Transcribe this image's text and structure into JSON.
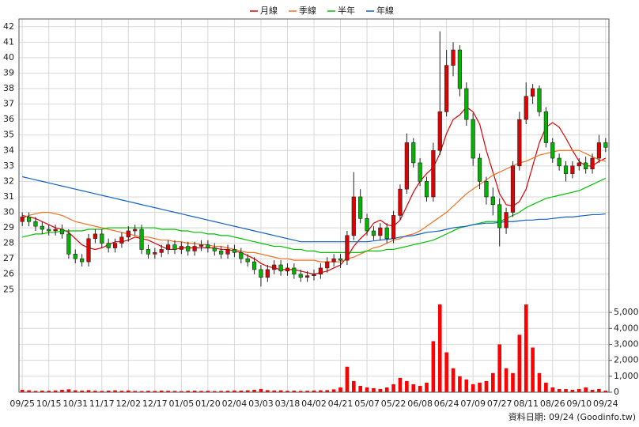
{
  "chart_data": {
    "type": "candlestick",
    "legend": "top",
    "categories": [
      "09/25",
      null,
      null,
      null,
      "10/15",
      null,
      null,
      null,
      "10/31",
      null,
      null,
      null,
      "11/17",
      null,
      null,
      null,
      "12/02",
      null,
      null,
      null,
      "12/17",
      null,
      null,
      null,
      "01/05",
      null,
      null,
      null,
      "01/20",
      null,
      null,
      null,
      "02/04",
      null,
      null,
      null,
      "03/03",
      null,
      null,
      null,
      "03/18",
      null,
      null,
      null,
      "04/02",
      null,
      null,
      null,
      "04/21",
      null,
      null,
      null,
      "05/07",
      null,
      null,
      null,
      "05/22",
      null,
      null,
      null,
      "06/08",
      null,
      null,
      null,
      "06/24",
      null,
      null,
      null,
      "07/09",
      null,
      null,
      null,
      "07/27",
      null,
      null,
      null,
      "08/11",
      null,
      null,
      null,
      "08/26",
      null,
      null,
      null,
      "09/10",
      null,
      null,
      null,
      "09/24"
    ],
    "ohlc": {
      "up_color": "#e00000",
      "down_color": "#00b400",
      "open": [
        29.4,
        29.7,
        29.4,
        29.1,
        28.9,
        28.8,
        28.9,
        28.6,
        27.3,
        27.0,
        26.8,
        28.3,
        28.6,
        28.0,
        27.7,
        28.0,
        28.4,
        28.8,
        28.9,
        27.6,
        27.3,
        27.4,
        27.6,
        27.9,
        27.6,
        27.8,
        27.5,
        27.8,
        27.9,
        27.7,
        27.5,
        27.3,
        27.6,
        27.4,
        27.0,
        26.8,
        26.3,
        25.8,
        26.3,
        26.6,
        26.2,
        26.4,
        26.0,
        25.8,
        25.9,
        26.0,
        26.4,
        26.8,
        27.0,
        26.9,
        28.5,
        31.0,
        29.6,
        28.8,
        28.5,
        29.0,
        28.3,
        29.8,
        31.5,
        34.5,
        33.2,
        32.0,
        31.0,
        34.0,
        36.5,
        39.5,
        40.5,
        38.0,
        36.0,
        33.5,
        32.0,
        31.0,
        30.5,
        29.0,
        30.0,
        33.0,
        36.0,
        37.5,
        38.0,
        36.5,
        34.5,
        33.5,
        33.0,
        32.5,
        33.0,
        33.2,
        32.8,
        33.5,
        34.5
      ],
      "high": [
        30.0,
        30.0,
        29.7,
        29.4,
        29.2,
        29.2,
        29.2,
        28.9,
        27.6,
        27.3,
        28.6,
        28.9,
        28.9,
        28.3,
        28.3,
        28.7,
        29.1,
        29.2,
        29.2,
        27.9,
        27.7,
        27.9,
        28.2,
        28.2,
        28.1,
        28.1,
        28.1,
        28.2,
        28.2,
        28.0,
        27.8,
        27.9,
        27.9,
        27.7,
        27.3,
        27.1,
        26.6,
        26.6,
        26.9,
        26.9,
        26.7,
        26.7,
        26.3,
        26.2,
        26.3,
        26.7,
        27.1,
        27.3,
        27.3,
        28.8,
        32.6,
        31.5,
        29.9,
        29.1,
        29.3,
        29.3,
        30.1,
        31.8,
        35.1,
        34.8,
        33.5,
        32.3,
        34.5,
        41.7,
        40.5,
        41.0,
        40.8,
        38.4,
        36.4,
        33.8,
        32.3,
        31.6,
        30.9,
        30.3,
        33.3,
        36.5,
        38.4,
        38.3,
        38.2,
        36.8,
        34.8,
        33.8,
        33.3,
        33.3,
        33.5,
        33.6,
        33.8,
        35.0,
        34.8
      ],
      "low": [
        29.1,
        29.1,
        28.8,
        28.6,
        28.5,
        28.5,
        28.3,
        27.0,
        26.7,
        26.5,
        26.5,
        28.0,
        27.7,
        27.4,
        27.4,
        27.7,
        28.1,
        28.5,
        27.3,
        27.0,
        27.0,
        27.1,
        27.3,
        27.3,
        27.3,
        27.2,
        27.2,
        27.5,
        27.4,
        27.2,
        27.0,
        27.0,
        27.1,
        26.7,
        26.5,
        26.0,
        25.2,
        25.5,
        26.0,
        25.9,
        25.9,
        25.7,
        25.5,
        25.5,
        25.6,
        25.7,
        26.1,
        26.5,
        26.4,
        26.6,
        28.2,
        29.3,
        28.5,
        28.2,
        28.2,
        28.0,
        28.0,
        29.5,
        31.2,
        32.9,
        31.7,
        30.7,
        30.7,
        33.7,
        36.2,
        38.8,
        37.5,
        35.6,
        33.0,
        31.5,
        30.5,
        29.8,
        27.8,
        28.6,
        29.7,
        32.7,
        35.7,
        37.0,
        36.2,
        34.2,
        33.2,
        32.7,
        32.0,
        32.2,
        32.7,
        32.5,
        32.5,
        33.2,
        33.9
      ],
      "close": [
        29.7,
        29.4,
        29.1,
        28.9,
        28.8,
        28.9,
        28.6,
        27.3,
        27.0,
        26.8,
        28.3,
        28.6,
        28.0,
        27.7,
        28.0,
        28.4,
        28.8,
        28.9,
        27.6,
        27.3,
        27.4,
        27.6,
        27.9,
        27.6,
        27.8,
        27.5,
        27.8,
        27.9,
        27.7,
        27.5,
        27.3,
        27.6,
        27.4,
        27.0,
        26.8,
        26.3,
        25.8,
        26.3,
        26.6,
        26.2,
        26.4,
        26.0,
        25.8,
        25.9,
        26.0,
        26.4,
        26.8,
        27.0,
        26.9,
        28.5,
        31.0,
        29.6,
        28.8,
        28.5,
        29.0,
        28.3,
        29.8,
        31.5,
        34.5,
        33.2,
        32.0,
        31.0,
        34.0,
        36.5,
        39.5,
        40.5,
        38.0,
        36.0,
        33.5,
        32.0,
        31.0,
        30.5,
        29.0,
        30.0,
        33.0,
        36.0,
        37.5,
        38.0,
        36.5,
        34.5,
        33.5,
        33.0,
        32.5,
        33.0,
        33.2,
        32.8,
        33.5,
        34.5,
        34.2
      ]
    },
    "series": [
      {
        "name": "月線",
        "color": "#dd0000",
        "values": [
          29.8,
          29.7,
          29.6,
          29.4,
          29.2,
          29.0,
          28.9,
          28.7,
          28.3,
          27.9,
          27.7,
          27.6,
          27.7,
          27.9,
          28.1,
          28.1,
          28.2,
          28.4,
          28.3,
          28.2,
          28.0,
          27.8,
          27.6,
          27.6,
          27.7,
          27.7,
          27.7,
          27.7,
          27.7,
          27.7,
          27.6,
          27.6,
          27.5,
          27.4,
          27.2,
          27.0,
          26.7,
          26.5,
          26.4,
          26.3,
          26.3,
          26.3,
          26.2,
          26.1,
          26.0,
          26.1,
          26.2,
          26.4,
          26.6,
          27.1,
          27.8,
          28.3,
          28.7,
          29.3,
          29.5,
          29.2,
          29.1,
          29.5,
          30.4,
          31.3,
          32.0,
          32.5,
          32.9,
          33.8,
          35.1,
          36.0,
          36.3,
          36.8,
          36.5,
          35.7,
          34.0,
          32.6,
          31.2,
          30.5,
          30.4,
          30.7,
          31.5,
          33.0,
          34.5,
          35.5,
          35.8,
          35.5,
          34.8,
          34.0,
          33.3,
          33.0,
          33.0,
          33.3,
          33.5
        ]
      },
      {
        "name": "季線",
        "color": "#f07020",
        "values": [
          29.6,
          29.8,
          29.9,
          30.0,
          30.0,
          29.9,
          29.8,
          29.6,
          29.4,
          29.3,
          29.2,
          29.1,
          29.0,
          28.9,
          28.8,
          28.7,
          28.6,
          28.5,
          28.4,
          28.4,
          28.3,
          28.2,
          28.2,
          28.1,
          28.1,
          28.0,
          28.0,
          27.9,
          27.9,
          27.8,
          27.8,
          27.7,
          27.6,
          27.5,
          27.4,
          27.4,
          27.3,
          27.2,
          27.1,
          27.0,
          27.0,
          26.9,
          26.9,
          26.9,
          26.9,
          26.8,
          26.8,
          26.8,
          26.8,
          27.0,
          27.1,
          27.3,
          27.5,
          27.7,
          27.8,
          28.0,
          28.2,
          28.3,
          28.5,
          28.6,
          28.8,
          29.1,
          29.4,
          29.7,
          30.0,
          30.4,
          30.8,
          31.2,
          31.5,
          31.8,
          32.1,
          32.4,
          32.6,
          32.8,
          33.0,
          33.2,
          33.3,
          33.5,
          33.7,
          33.8,
          33.9,
          34.0,
          34.0,
          34.0,
          34.0,
          33.8,
          33.6,
          33.4,
          33.3
        ]
      },
      {
        "name": "半年",
        "color": "#00c000",
        "values": [
          28.4,
          28.5,
          28.6,
          28.6,
          28.7,
          28.7,
          28.8,
          28.8,
          28.8,
          28.8,
          28.9,
          28.9,
          28.9,
          29.0,
          29.0,
          29.0,
          29.0,
          29.0,
          29.0,
          29.0,
          29.0,
          28.9,
          28.9,
          28.9,
          28.8,
          28.8,
          28.7,
          28.7,
          28.6,
          28.6,
          28.5,
          28.5,
          28.4,
          28.3,
          28.2,
          28.1,
          28.0,
          27.9,
          27.8,
          27.8,
          27.7,
          27.6,
          27.6,
          27.5,
          27.5,
          27.4,
          27.4,
          27.4,
          27.4,
          27.4,
          27.4,
          27.4,
          27.5,
          27.5,
          27.5,
          27.6,
          27.6,
          27.7,
          27.8,
          27.9,
          28.0,
          28.1,
          28.2,
          28.4,
          28.6,
          28.8,
          29.0,
          29.1,
          29.2,
          29.3,
          29.4,
          29.4,
          29.4,
          29.6,
          29.8,
          30.0,
          30.3,
          30.5,
          30.7,
          30.9,
          31.0,
          31.1,
          31.2,
          31.3,
          31.4,
          31.6,
          31.8,
          32.0,
          32.2
        ]
      },
      {
        "name": "年線",
        "color": "#1060c0",
        "values": [
          32.3,
          32.2,
          32.1,
          32.0,
          31.9,
          31.8,
          31.7,
          31.6,
          31.5,
          31.4,
          31.3,
          31.2,
          31.1,
          31.0,
          30.9,
          30.8,
          30.7,
          30.6,
          30.5,
          30.4,
          30.3,
          30.2,
          30.1,
          30.0,
          29.9,
          29.8,
          29.7,
          29.6,
          29.5,
          29.4,
          29.3,
          29.2,
          29.1,
          29.0,
          28.9,
          28.8,
          28.7,
          28.6,
          28.5,
          28.4,
          28.3,
          28.2,
          28.1,
          28.1,
          28.1,
          28.1,
          28.1,
          28.1,
          28.1,
          28.1,
          28.1,
          28.1,
          28.1,
          28.15,
          28.2,
          28.25,
          28.3,
          28.4,
          28.45,
          28.5,
          28.6,
          28.7,
          28.75,
          28.8,
          28.9,
          29.0,
          29.05,
          29.1,
          29.2,
          29.25,
          29.3,
          29.3,
          29.35,
          29.4,
          29.4,
          29.45,
          29.5,
          29.5,
          29.55,
          29.55,
          29.6,
          29.65,
          29.7,
          29.7,
          29.75,
          29.8,
          29.85,
          29.85,
          29.9
        ]
      }
    ],
    "volume": {
      "color": "#ff0000",
      "axis": "y2",
      "values": [
        150,
        120,
        80,
        100,
        90,
        110,
        150,
        180,
        120,
        100,
        130,
        90,
        80,
        100,
        120,
        90,
        110,
        80,
        70,
        90,
        80,
        100,
        90,
        80,
        70,
        90,
        100,
        80,
        90,
        70,
        80,
        90,
        110,
        100,
        120,
        150,
        200,
        130,
        110,
        120,
        90,
        100,
        80,
        90,
        110,
        120,
        130,
        180,
        300,
        1600,
        700,
        400,
        300,
        250,
        200,
        300,
        500,
        900,
        700,
        500,
        400,
        600,
        3200,
        5500,
        2500,
        1500,
        1000,
        800,
        500,
        600,
        700,
        1200,
        3000,
        1500,
        1200,
        3600,
        5500,
        2800,
        1200,
        600,
        300,
        200,
        200,
        150,
        200,
        300,
        150,
        200,
        100
      ]
    },
    "ylim": [
      24.3,
      42.5
    ],
    "yticks": [
      25,
      26,
      27,
      28,
      29,
      30,
      31,
      32,
      33,
      34,
      35,
      36,
      37,
      38,
      39,
      40,
      41,
      42
    ],
    "y2lim": [
      0,
      5700
    ],
    "y2ticks": [
      0,
      {
        "value": 1000,
        "label": "1,000"
      },
      {
        "value": 2000,
        "label": "2,000"
      },
      {
        "value": 3000,
        "label": "3,000"
      },
      {
        "value": 4000,
        "label": "4,000"
      },
      {
        "value": 5000,
        "label": "5,000"
      }
    ],
    "grid": true,
    "annotation": "資料日期: 09/24  (Goodinfo.tw)"
  }
}
